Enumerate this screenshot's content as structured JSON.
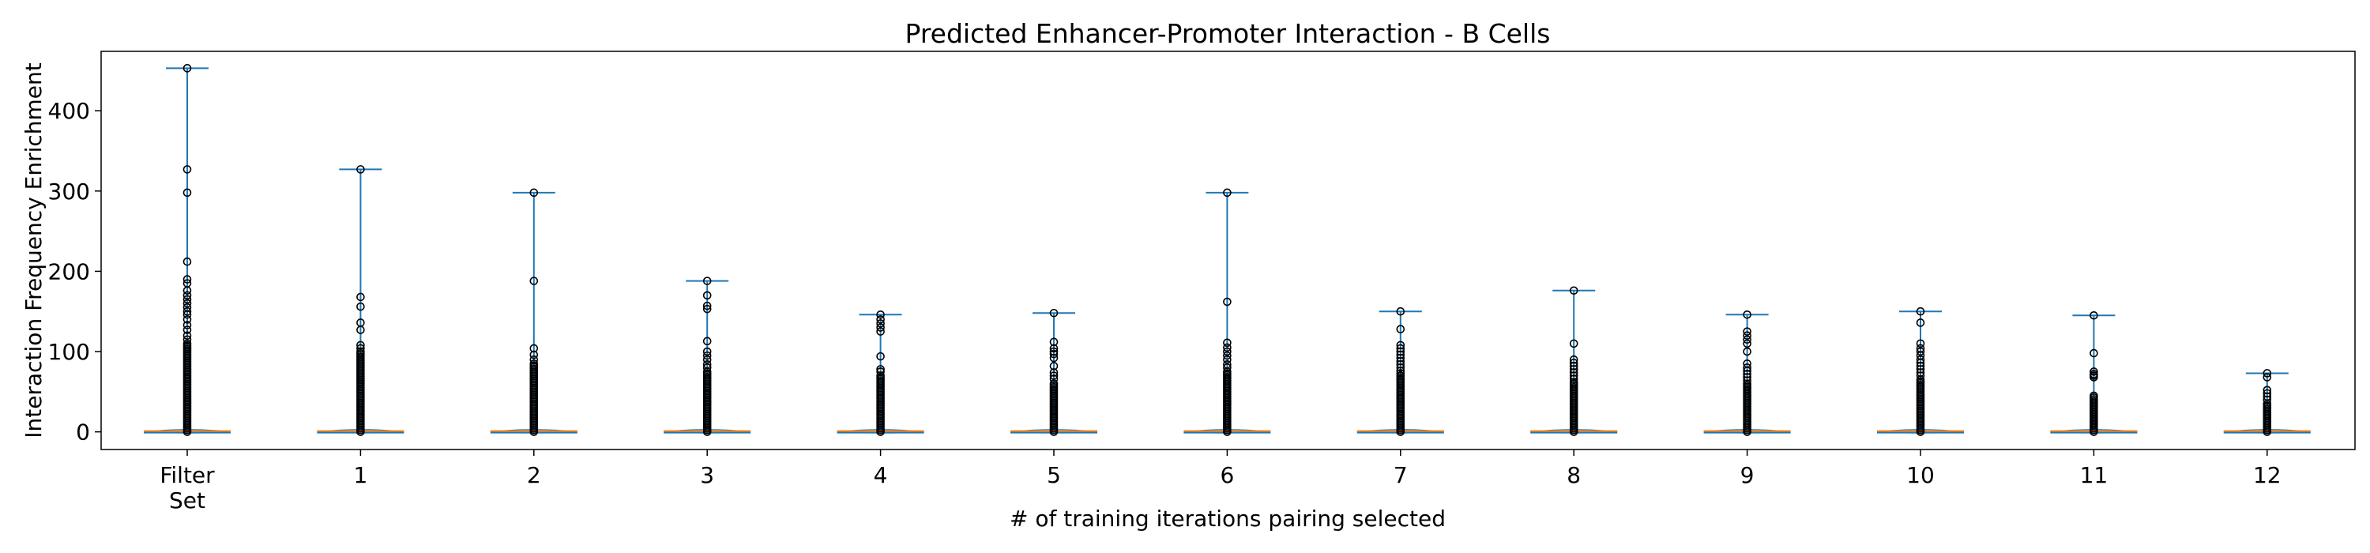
{
  "chart_data": {
    "type": "violin",
    "title": "Predicted Enhancer-Promoter Interaction - B Cells",
    "xlabel": "# of training iterations pairing selected",
    "ylabel": "Interaction Frequency Enrichment",
    "ylim": [
      -22,
      474
    ],
    "yticks": [
      0,
      100,
      200,
      300,
      400
    ],
    "grid": false,
    "colors": {
      "body": "#1f77b4",
      "median": "#ff7f0e",
      "outlier_edge": "#000000"
    },
    "categories": [
      {
        "lines": [
          "Filter",
          "Set"
        ]
      },
      {
        "lines": [
          "1"
        ]
      },
      {
        "lines": [
          "2"
        ]
      },
      {
        "lines": [
          "3"
        ]
      },
      {
        "lines": [
          "4"
        ]
      },
      {
        "lines": [
          "5"
        ]
      },
      {
        "lines": [
          "6"
        ]
      },
      {
        "lines": [
          "7"
        ]
      },
      {
        "lines": [
          "8"
        ]
      },
      {
        "lines": [
          "9"
        ]
      },
      {
        "lines": [
          "10"
        ]
      },
      {
        "lines": [
          "11"
        ]
      },
      {
        "lines": [
          "12"
        ]
      }
    ],
    "series": [
      {
        "max": 453,
        "median": 1,
        "dense_max": 110,
        "outliers": [
          453,
          327,
          298,
          212,
          190,
          185,
          176,
          170,
          165,
          160,
          155,
          150,
          146,
          140,
          133,
          127,
          120,
          115
        ]
      },
      {
        "max": 327,
        "median": 1,
        "dense_max": 100,
        "outliers": [
          327,
          168,
          156,
          136,
          127,
          108,
          104
        ]
      },
      {
        "max": 298,
        "median": 1,
        "dense_max": 85,
        "outliers": [
          298,
          188,
          104,
          96,
          90
        ]
      },
      {
        "max": 188,
        "median": 1,
        "dense_max": 75,
        "outliers": [
          188,
          170,
          157,
          153,
          113,
          100,
          95,
          90,
          84,
          80
        ]
      },
      {
        "max": 146,
        "median": 1,
        "dense_max": 70,
        "outliers": [
          146,
          140,
          135,
          130,
          125,
          94,
          78,
          75
        ]
      },
      {
        "max": 148,
        "median": 1,
        "dense_max": 60,
        "outliers": [
          148,
          112,
          104,
          100,
          97,
          92,
          82,
          74,
          70,
          66
        ]
      },
      {
        "max": 298,
        "median": 1,
        "dense_max": 75,
        "outliers": [
          298,
          162,
          111,
          105,
          100,
          95,
          90,
          84,
          80
        ]
      },
      {
        "max": 150,
        "median": 1,
        "dense_max": 70,
        "outliers": [
          150,
          128,
          108,
          104,
          100,
          96,
          92,
          88,
          84,
          80,
          76,
          73
        ]
      },
      {
        "max": 176,
        "median": 1,
        "dense_max": 60,
        "outliers": [
          176,
          110,
          90,
          86,
          82,
          78,
          74,
          70,
          66,
          62
        ]
      },
      {
        "max": 146,
        "median": 1,
        "dense_max": 60,
        "outliers": [
          146,
          125,
          120,
          115,
          110,
          100,
          85,
          80,
          76,
          72,
          68,
          64
        ]
      },
      {
        "max": 150,
        "median": 1,
        "dense_max": 65,
        "outliers": [
          150,
          136,
          110,
          104,
          100,
          95,
          90,
          86,
          82,
          78,
          74,
          70
        ]
      },
      {
        "max": 145,
        "median": 1,
        "dense_max": 45,
        "outliers": [
          145,
          98,
          75,
          72,
          70,
          68
        ]
      },
      {
        "max": 73,
        "median": 1,
        "dense_max": 35,
        "outliers": [
          73,
          68,
          52,
          48,
          44,
          40
        ]
      }
    ]
  }
}
